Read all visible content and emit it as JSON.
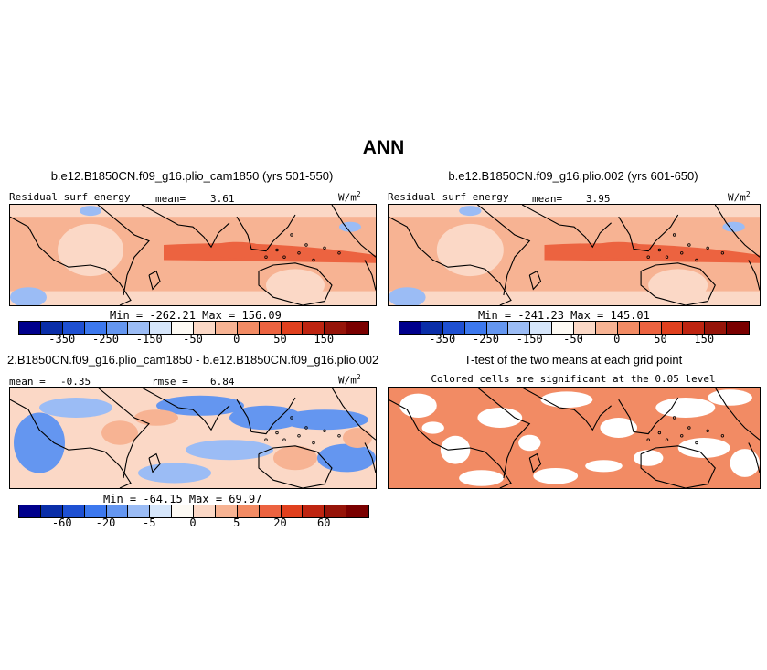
{
  "figure_title": "ANN",
  "panels": {
    "p1": {
      "title": "b.e12.B1850CN.f09_g16.plio_cam1850 (yrs 501-550)",
      "variable": "Residual surf energy",
      "mean_label": "mean=",
      "mean_value": "3.61",
      "units": "W/m",
      "units_exp": "2",
      "stats": "Min = -262.21  Max = 156.09"
    },
    "p2": {
      "title": "b.e12.B1850CN.f09_g16.plio.002 (yrs 601-650)",
      "variable": "Residual surf energy",
      "mean_label": "mean=",
      "mean_value": "3.95",
      "units": "W/m",
      "units_exp": "2",
      "stats": "Min = -241.23  Max = 145.01"
    },
    "p3": {
      "title": "2.B1850CN.f09_g16.plio_cam1850 - b.e12.B1850CN.f09_g16.plio.002",
      "mean_label": "mean =",
      "mean_value": "-0.35",
      "rmse_label": "rmse =",
      "rmse_value": "6.84",
      "units": "W/m",
      "units_exp": "2",
      "stats": "Min = -64.15  Max =  69.97"
    },
    "p4": {
      "title": "T-test of the two means at each grid point",
      "subtitle": "Colored cells are significant at the 0.05 level"
    }
  },
  "colorbars": {
    "main": {
      "colors": [
        "#00008c",
        "#0a2ea8",
        "#1e50d2",
        "#3c78ee",
        "#6496f0",
        "#9bbcf5",
        "#d6e6fb",
        "#fdfaf4",
        "#fbd8c6",
        "#f7b393",
        "#f28b64",
        "#ec6340",
        "#e0401e",
        "#be2410",
        "#961409",
        "#7a0000"
      ],
      "tick_labels": [
        "-350",
        "-250",
        "-150",
        "-50",
        "0",
        "50",
        "150"
      ]
    },
    "diff": {
      "colors": [
        "#00008c",
        "#0a2ea8",
        "#1e50d2",
        "#3c78ee",
        "#6496f0",
        "#9bbcf5",
        "#d6e6fb",
        "#fdfaf4",
        "#fbd8c6",
        "#f7b393",
        "#f28b64",
        "#ec6340",
        "#e0401e",
        "#be2410",
        "#961409",
        "#7a0000"
      ],
      "tick_labels": [
        "-60",
        "-20",
        "-5",
        "0",
        "5",
        "20",
        "60"
      ]
    }
  },
  "colors": {
    "field_base": "#f7b393",
    "field_strong": "#ec6340",
    "field_light": "#fbd8c6",
    "negative": "#6496f0",
    "negative_light": "#9bbcf5",
    "significant": "#f28b64"
  }
}
